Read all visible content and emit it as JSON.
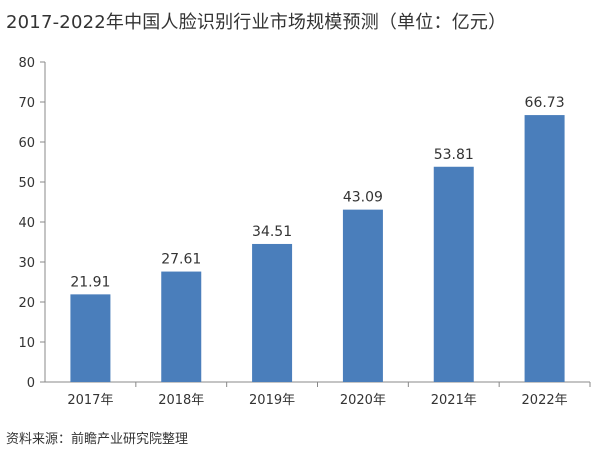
{
  "colors": {
    "bar": "#4a7ebb",
    "axis": "#888888",
    "text": "#333333"
  },
  "chart_data": {
    "type": "bar",
    "title": "2017-2022年中国人脸识别行业市场规模预测（单位：亿元）",
    "source": "资料来源：前瞻产业研究院整理",
    "categories": [
      "2017年",
      "2018年",
      "2019年",
      "2020年",
      "2021年",
      "2022年"
    ],
    "values": [
      21.91,
      27.61,
      34.51,
      43.09,
      53.81,
      66.73
    ],
    "data_labels": [
      "21.91",
      "27.61",
      "34.51",
      "43.09",
      "53.81",
      "66.73"
    ],
    "ylim": [
      0,
      80
    ],
    "yticks": [
      0,
      10,
      20,
      30,
      40,
      50,
      60,
      70,
      80
    ],
    "xlabel": "",
    "ylabel": "",
    "grid": false,
    "legend": "none"
  }
}
